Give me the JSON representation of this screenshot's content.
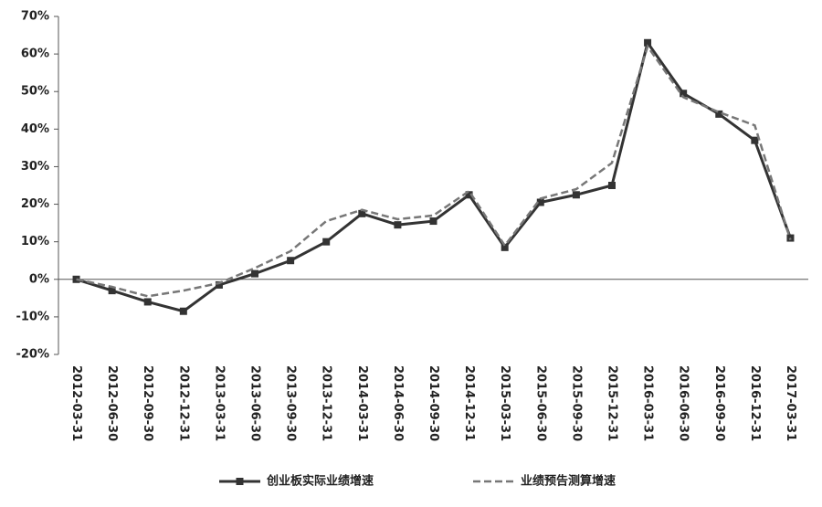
{
  "chart_data": {
    "type": "line",
    "categories": [
      "2012-03-31",
      "2012-06-30",
      "2012-09-30",
      "2012-12-31",
      "2013-03-31",
      "2013-06-30",
      "2013-09-30",
      "2013-12-31",
      "2014-03-31",
      "2014-06-30",
      "2014-09-30",
      "2014-12-31",
      "2015-03-31",
      "2015-06-30",
      "2015-09-30",
      "2015-12-31",
      "2016-03-31",
      "2016-06-30",
      "2016-09-30",
      "2016-12-31",
      "2017-03-31"
    ],
    "series": [
      {
        "name": "创业板实际业绩增速",
        "color": "#333333",
        "style": "solid",
        "marker": "square",
        "values": [
          0,
          -3,
          -6,
          -8.5,
          -1.5,
          1.5,
          5,
          10,
          17.5,
          14.5,
          15.5,
          22.5,
          8.5,
          20.5,
          22.5,
          25,
          63,
          49.5,
          44,
          37,
          11
        ]
      },
      {
        "name": "业绩预告测算增速",
        "color": "#777777",
        "style": "dashed",
        "marker": "none",
        "values": [
          0,
          -2,
          -4.5,
          -3,
          -1,
          3,
          7.5,
          15.5,
          18.5,
          16,
          17,
          23.5,
          9,
          21.5,
          24,
          31,
          62,
          48.5,
          44.5,
          41,
          10.5
        ]
      }
    ],
    "ylim": [
      -20,
      70
    ],
    "yticks": [
      {
        "value": -20,
        "label": "-20%"
      },
      {
        "value": -10,
        "label": "-10%"
      },
      {
        "value": 0,
        "label": "0%"
      },
      {
        "value": 10,
        "label": "10%"
      },
      {
        "value": 20,
        "label": "20%"
      },
      {
        "value": 30,
        "label": "30%"
      },
      {
        "value": 40,
        "label": "40%"
      },
      {
        "value": 50,
        "label": "50%"
      },
      {
        "value": 60,
        "label": "60%"
      },
      {
        "value": 70,
        "label": "70%"
      }
    ],
    "grid": false,
    "legend": "bottom"
  }
}
